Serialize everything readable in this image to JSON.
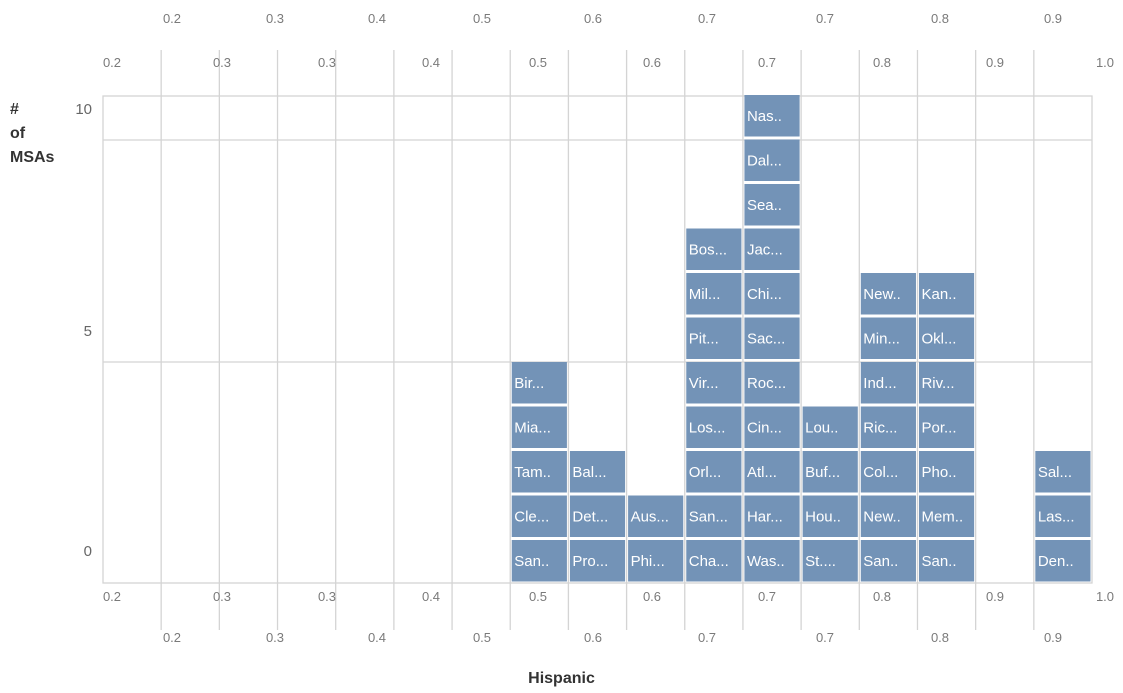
{
  "chart_data": {
    "type": "bar",
    "xlabel": "Hispanic",
    "ylabel_lines": [
      "#",
      "of",
      "MSAs"
    ],
    "ylim": [
      0,
      10
    ],
    "y_ticks": [
      "0",
      "5",
      "10"
    ],
    "x_ticks_outer_left": [
      "0.2",
      "0.3",
      "0.3",
      "0.4",
      "0.5",
      "0.6",
      "0.7",
      "0.7",
      "0.8",
      "0.8",
      "0.9"
    ],
    "x_ticks_inner_right": [
      "0.2",
      "0.3",
      "0.3",
      "0.4",
      "0.5",
      "0.6",
      "0.7",
      "0.8",
      "0.9",
      "1.0"
    ],
    "bins": [
      {
        "cells": []
      },
      {
        "cells": []
      },
      {
        "cells": []
      },
      {
        "cells": []
      },
      {
        "cells": []
      },
      {
        "cells": []
      },
      {
        "cells": []
      },
      {
        "cells": [
          "San..",
          "Cle...",
          "Tam..",
          "Mia...",
          "Bir..."
        ]
      },
      {
        "cells": [
          "Pro...",
          "Det...",
          "Bal..."
        ]
      },
      {
        "cells": [
          "Phi...",
          "Aus..."
        ]
      },
      {
        "cells": [
          "Cha...",
          "San...",
          "Orl...",
          "Los...",
          "Vir...",
          "Pit...",
          "Mil...",
          "Bos..."
        ]
      },
      {
        "cells": [
          "Was..",
          "Har...",
          "Atl...",
          "Cin...",
          "Roc...",
          "Sac...",
          "Chi...",
          "Jac...",
          "Sea..",
          "Dal...",
          "Nas.."
        ]
      },
      {
        "cells": [
          "St....",
          "Hou..",
          "Buf...",
          "Lou.."
        ]
      },
      {
        "cells": [
          "San..",
          "New..",
          "Col...",
          "Ric...",
          "Ind...",
          "Min...",
          "New.."
        ]
      },
      {
        "cells": [
          "San..",
          "Mem..",
          "Pho..",
          "Por...",
          "Riv...",
          "Okl...",
          "Kan.."
        ]
      },
      {
        "cells": []
      },
      {
        "cells": [
          "Den..",
          "Las...",
          "Sal..."
        ]
      }
    ],
    "colors": {
      "bar": "#7393b7",
      "grid": "#d4d4d4"
    }
  }
}
